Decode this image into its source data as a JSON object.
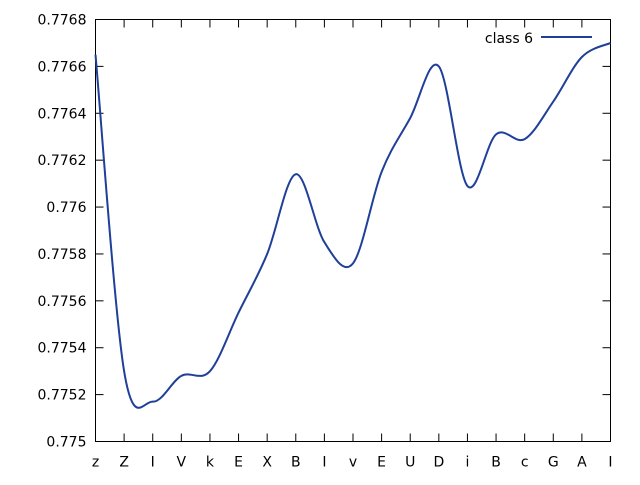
{
  "chart_data": {
    "type": "line",
    "title": "",
    "xlabel": "",
    "ylabel": "",
    "ylim": [
      0.775,
      0.7768
    ],
    "yticks": [
      "0.775",
      "0.7752",
      "0.7754",
      "0.7756",
      "0.7758",
      "0.776",
      "0.7762",
      "0.7764",
      "0.7766",
      "0.7768"
    ],
    "categories": [
      "z",
      "Z",
      "I",
      "V",
      "k",
      "E",
      "X",
      "B",
      "I",
      "v",
      "E",
      "U",
      "D",
      "i",
      "B",
      "c",
      "G",
      "A",
      "I"
    ],
    "grid": false,
    "legend_position": "top-right",
    "series": [
      {
        "name": "class 6",
        "color": "#1f3f99",
        "values": [
          0.77665,
          0.7753,
          0.77517,
          0.77528,
          0.7753,
          0.77555,
          0.7758,
          0.77614,
          0.77585,
          0.77576,
          0.77615,
          0.77638,
          0.7766,
          0.77609,
          0.77631,
          0.77629,
          0.77645,
          0.77664,
          0.7767
        ]
      }
    ]
  }
}
